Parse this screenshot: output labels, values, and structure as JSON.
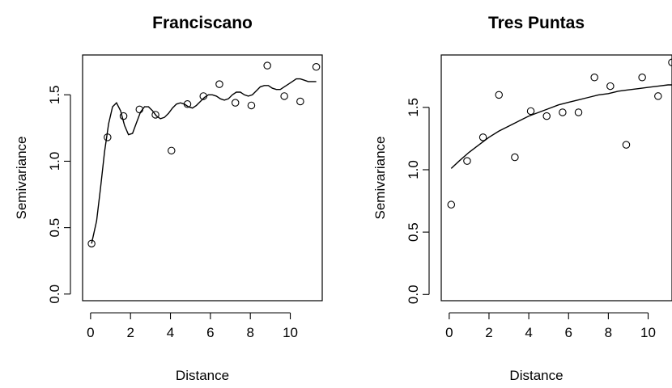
{
  "chart_data": [
    {
      "type": "scatter",
      "title": "Franciscano",
      "xlabel": "Distance",
      "ylabel": "Semivariance",
      "xlim": [
        -0.4,
        11.6
      ],
      "ylim": [
        -0.05,
        1.8
      ],
      "xticks": [
        0,
        2,
        4,
        6,
        8,
        10
      ],
      "yticks": [
        0.0,
        0.5,
        1.0,
        1.5
      ],
      "ytick_labels": [
        "0.0",
        "0.5",
        "1.0",
        "1.5"
      ],
      "points": {
        "x": [
          0.05,
          0.85,
          1.65,
          2.45,
          3.25,
          4.05,
          4.85,
          5.65,
          6.45,
          7.25,
          8.05,
          8.85,
          9.7,
          10.5,
          11.3
        ],
        "y": [
          0.38,
          1.18,
          1.34,
          1.39,
          1.35,
          1.08,
          1.43,
          1.49,
          1.58,
          1.44,
          1.42,
          1.72,
          1.49,
          1.45,
          1.71
        ]
      },
      "curve": {
        "x": [
          0.05,
          0.3,
          0.5,
          0.7,
          0.9,
          1.1,
          1.3,
          1.5,
          1.7,
          1.9,
          2.1,
          2.3,
          2.5,
          2.7,
          2.9,
          3.1,
          3.3,
          3.5,
          3.7,
          3.9,
          4.1,
          4.3,
          4.5,
          4.7,
          4.9,
          5.1,
          5.3,
          5.5,
          5.7,
          5.9,
          6.1,
          6.3,
          6.5,
          6.7,
          6.9,
          7.1,
          7.3,
          7.5,
          7.7,
          7.9,
          8.1,
          8.3,
          8.5,
          8.7,
          8.9,
          9.1,
          9.3,
          9.5,
          9.7,
          9.9,
          10.1,
          10.3,
          10.5,
          10.7,
          10.9,
          11.1,
          11.3
        ],
        "y": [
          0.38,
          0.55,
          0.8,
          1.07,
          1.28,
          1.41,
          1.44,
          1.38,
          1.27,
          1.2,
          1.21,
          1.29,
          1.37,
          1.41,
          1.41,
          1.38,
          1.34,
          1.32,
          1.33,
          1.36,
          1.4,
          1.43,
          1.44,
          1.43,
          1.41,
          1.4,
          1.42,
          1.45,
          1.48,
          1.5,
          1.5,
          1.49,
          1.47,
          1.46,
          1.47,
          1.5,
          1.52,
          1.52,
          1.5,
          1.49,
          1.5,
          1.53,
          1.56,
          1.57,
          1.57,
          1.55,
          1.54,
          1.54,
          1.56,
          1.58,
          1.6,
          1.62,
          1.62,
          1.61,
          1.6,
          1.6,
          1.6
        ]
      }
    },
    {
      "type": "scatter",
      "title": "Tres Puntas",
      "xlabel": "Distance",
      "ylabel": "Semivariance",
      "xlim": [
        -0.4,
        11.2
      ],
      "ylim": [
        -0.05,
        1.92
      ],
      "xticks": [
        0,
        2,
        4,
        6,
        8,
        10
      ],
      "yticks": [
        0.0,
        0.5,
        1.0,
        1.5
      ],
      "ytick_labels": [
        "0.0",
        "0.5",
        "1.0",
        "1.5"
      ],
      "points": {
        "x": [
          0.1,
          0.9,
          1.7,
          2.5,
          3.3,
          4.1,
          4.9,
          5.7,
          6.5,
          7.3,
          8.1,
          8.9,
          9.7,
          10.5,
          11.2
        ],
        "y": [
          0.72,
          1.07,
          1.26,
          1.6,
          1.1,
          1.47,
          1.43,
          1.46,
          1.46,
          1.74,
          1.67,
          1.2,
          1.74,
          1.59,
          1.86
        ]
      },
      "curve": {
        "x": [
          0.1,
          0.5,
          1.0,
          1.5,
          2.0,
          2.5,
          3.0,
          3.5,
          4.0,
          4.5,
          5.0,
          5.5,
          6.0,
          6.5,
          7.0,
          7.5,
          8.0,
          8.5,
          9.0,
          9.5,
          10.0,
          10.5,
          11.0,
          11.2
        ],
        "y": [
          1.01,
          1.07,
          1.14,
          1.2,
          1.26,
          1.31,
          1.35,
          1.39,
          1.43,
          1.46,
          1.49,
          1.52,
          1.54,
          1.56,
          1.58,
          1.6,
          1.61,
          1.63,
          1.64,
          1.65,
          1.66,
          1.67,
          1.68,
          1.68
        ]
      }
    }
  ]
}
